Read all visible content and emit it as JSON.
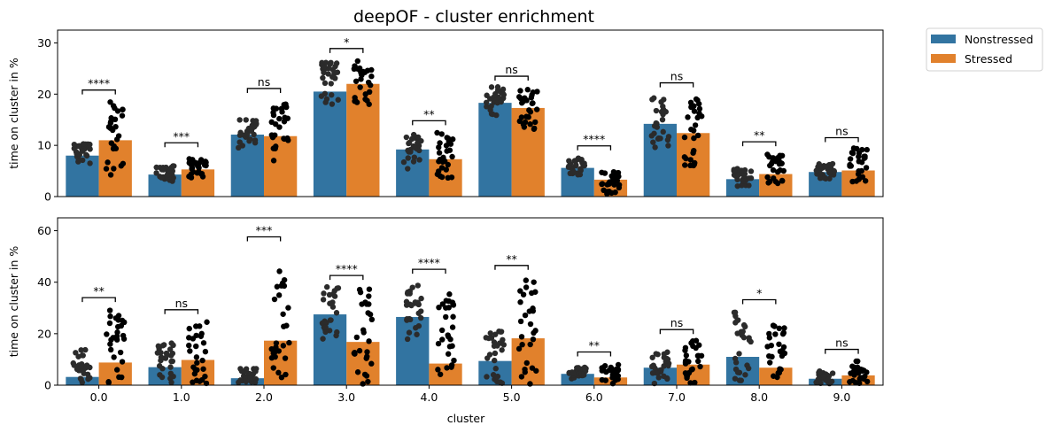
{
  "title": "deepOF - cluster enrichment",
  "colors": {
    "nonstressed": "#3274a1",
    "stressed": "#e1812c",
    "dots": "#111111"
  },
  "legend": {
    "placement": "outside-top-right",
    "entries": [
      {
        "label": "Nonstressed",
        "color": "#3274a1"
      },
      {
        "label": "Stressed",
        "color": "#e1812c"
      }
    ]
  },
  "chart_data": [
    {
      "type": "bar",
      "panel": "top",
      "title": "deepOF - cluster enrichment",
      "xlabel": "",
      "ylabel": "time on cluster in %",
      "ylim": [
        0,
        32.5
      ],
      "yticks": [
        0,
        10,
        20,
        30
      ],
      "categories": [
        "0.0",
        "1.0",
        "2.0",
        "3.0",
        "4.0",
        "5.0",
        "6.0",
        "7.0",
        "8.0",
        "9.0"
      ],
      "series": [
        {
          "name": "Nonstressed",
          "values": [
            8.0,
            4.3,
            12.1,
            20.5,
            9.2,
            18.3,
            5.6,
            14.2,
            3.4,
            4.8
          ]
        },
        {
          "name": "Stressed",
          "values": [
            11.0,
            5.3,
            11.8,
            22.0,
            7.3,
            17.3,
            3.3,
            12.4,
            4.4,
            5.1
          ]
        }
      ],
      "points_range": {
        "Nonstressed": [
          [
            6.5,
            10.5
          ],
          [
            3.0,
            6.0
          ],
          [
            9.5,
            15.0
          ],
          [
            17.5,
            26.5
          ],
          [
            5.0,
            12.5
          ],
          [
            15.5,
            21.5
          ],
          [
            4.0,
            7.5
          ],
          [
            9.5,
            19.5
          ],
          [
            2.0,
            5.5
          ],
          [
            3.5,
            6.5
          ]
        ],
        "Stressed": [
          [
            4.0,
            18.5
          ],
          [
            3.5,
            7.5
          ],
          [
            7.0,
            18.5
          ],
          [
            18.0,
            26.5
          ],
          [
            2.5,
            12.5
          ],
          [
            13.0,
            21.0
          ],
          [
            0.5,
            5.0
          ],
          [
            6.0,
            19.5
          ],
          [
            2.0,
            8.5
          ],
          [
            2.5,
            9.5
          ]
        ]
      },
      "annotations": [
        "****",
        "***",
        "ns",
        "*",
        "**",
        "ns",
        "****",
        "ns",
        "**",
        "ns"
      ],
      "annotation_y": [
        20.8,
        10.5,
        21.1,
        28.9,
        14.8,
        23.5,
        9.9,
        22.2,
        10.7,
        11.5
      ],
      "grid": false
    },
    {
      "type": "bar",
      "panel": "bottom",
      "xlabel": "cluster",
      "ylabel": "time on cluster in %",
      "ylim": [
        0,
        65
      ],
      "yticks": [
        0,
        20,
        40,
        60
      ],
      "categories": [
        "0.0",
        "1.0",
        "2.0",
        "3.0",
        "4.0",
        "5.0",
        "6.0",
        "7.0",
        "8.0",
        "9.0"
      ],
      "series": [
        {
          "name": "Nonstressed",
          "values": [
            3.2,
            7.0,
            2.7,
            27.5,
            26.5,
            9.4,
            4.4,
            6.8,
            11.0,
            2.5
          ]
        },
        {
          "name": "Stressed",
          "values": [
            8.8,
            9.8,
            17.3,
            16.8,
            8.4,
            18.2,
            3.0,
            8.0,
            6.8,
            3.8
          ]
        }
      ],
      "points_range": {
        "Nonstressed": [
          [
            0.5,
            14.0
          ],
          [
            0.5,
            17.0
          ],
          [
            0.5,
            6.5
          ],
          [
            17.0,
            38.5
          ],
          [
            15.0,
            40.5
          ],
          [
            0.5,
            21.0
          ],
          [
            2.5,
            7.0
          ],
          [
            0.5,
            13.5
          ],
          [
            1.0,
            29.0
          ],
          [
            0.5,
            5.5
          ]
        ],
        "Stressed": [
          [
            0.5,
            29.5
          ],
          [
            0.5,
            24.5
          ],
          [
            0.5,
            53.0
          ],
          [
            0.5,
            38.0
          ],
          [
            0.5,
            36.0
          ],
          [
            0.5,
            42.0
          ],
          [
            0.5,
            8.0
          ],
          [
            0.5,
            17.5
          ],
          [
            0.5,
            24.0
          ],
          [
            0.5,
            9.5
          ]
        ]
      },
      "annotations": [
        "**",
        "ns",
        "***",
        "****",
        "****",
        "**",
        "**",
        "ns",
        "*",
        "ns"
      ],
      "annotation_y": [
        34.0,
        29.3,
        57.6,
        42.6,
        45.0,
        46.5,
        12.9,
        21.6,
        33.2,
        13.9
      ],
      "grid": false
    }
  ]
}
